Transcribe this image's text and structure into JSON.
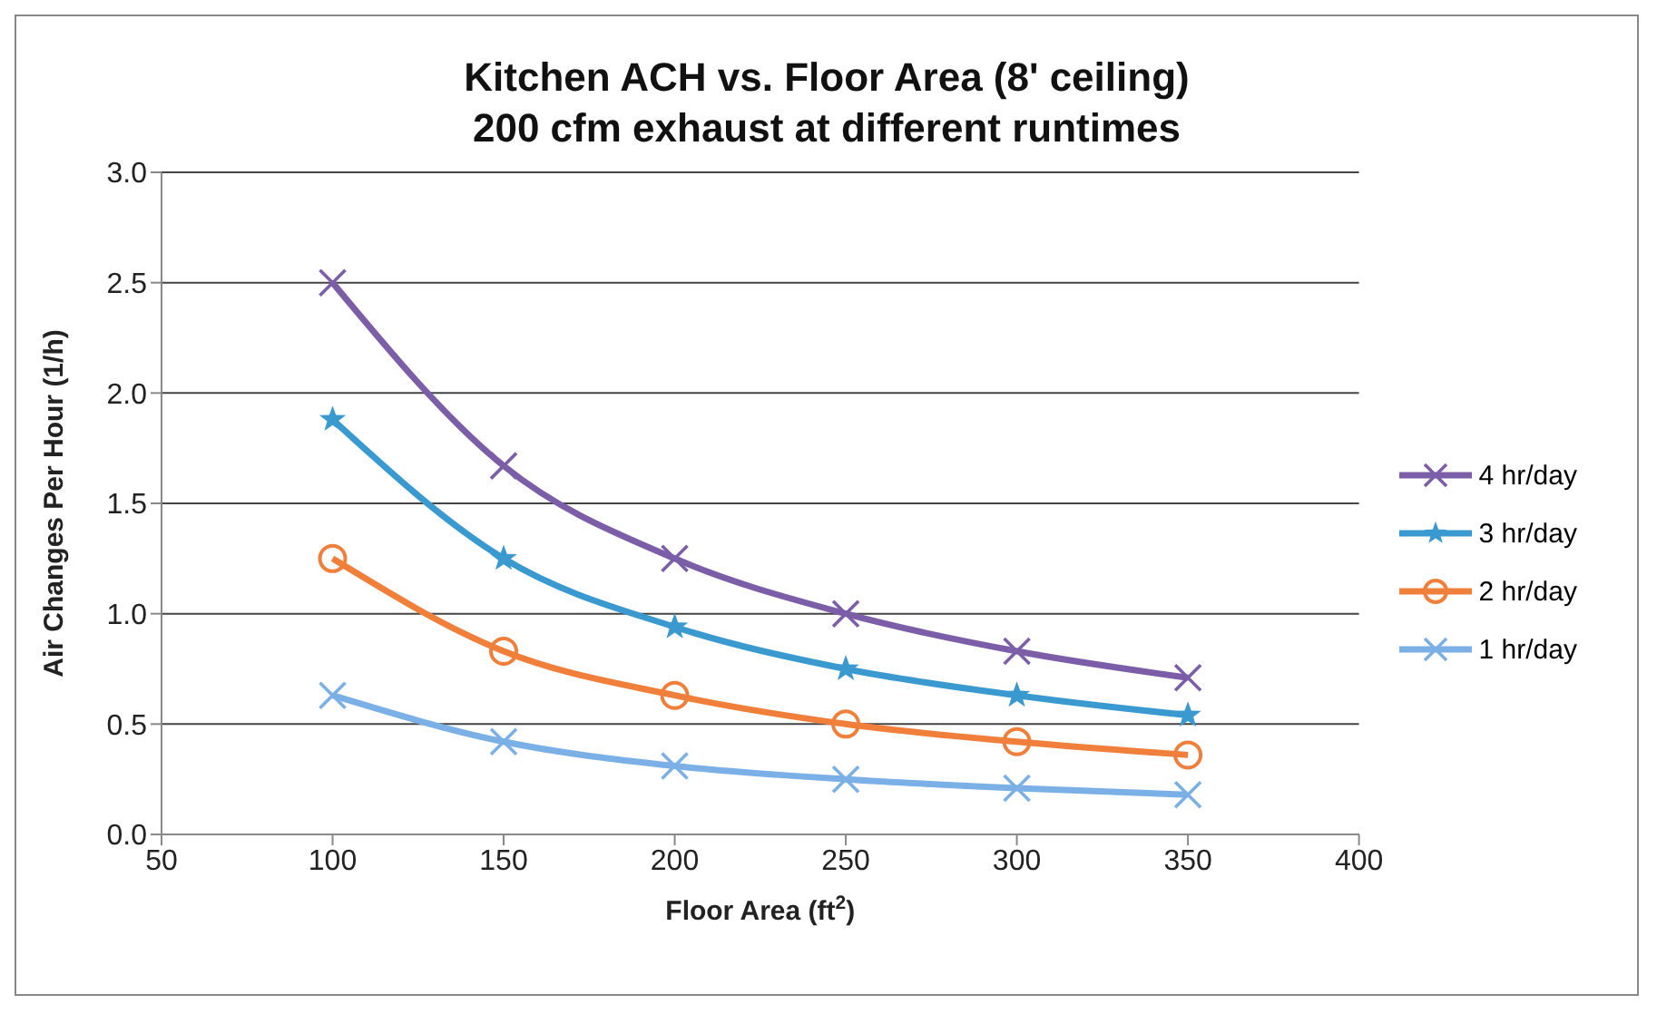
{
  "chart_data": {
    "type": "line",
    "title": "Kitchen ACH vs. Floor Area (8' ceiling)",
    "subtitle": "200 cfm exhaust at different runtimes",
    "xlabel": "Floor Area (ft$^{2}$)",
    "ylabel": "Air Changes Per Hour (1/h)",
    "x": [
      100,
      150,
      200,
      250,
      300,
      350
    ],
    "series": [
      {
        "name": "4 hr/day",
        "color": "#7b5ea7",
        "marker": "cross",
        "values": [
          2.5,
          1.67,
          1.25,
          1.0,
          0.83,
          0.71
        ]
      },
      {
        "name": "3 hr/day",
        "color": "#3a9ad0",
        "marker": "star",
        "values": [
          1.88,
          1.25,
          0.94,
          0.75,
          0.63,
          0.54
        ]
      },
      {
        "name": "2 hr/day",
        "color": "#f07f3c",
        "marker": "circle",
        "values": [
          1.25,
          0.83,
          0.63,
          0.5,
          0.42,
          0.36
        ]
      },
      {
        "name": "1 hr/day",
        "color": "#7ab0e6",
        "marker": "cross",
        "values": [
          0.63,
          0.42,
          0.31,
          0.25,
          0.21,
          0.18
        ]
      }
    ],
    "xlim": [
      50,
      400
    ],
    "xticks": [
      50,
      100,
      150,
      200,
      250,
      300,
      350,
      400
    ],
    "ylim": [
      0,
      3
    ],
    "yticks": [
      {
        "value": 0,
        "label": "0.0"
      },
      {
        "value": 0.5,
        "label": "0.5"
      },
      {
        "value": 1,
        "label": "1.0"
      },
      {
        "value": 1.5,
        "label": "1.5"
      },
      {
        "value": 2,
        "label": "2.0"
      },
      {
        "value": 2.5,
        "label": "2.5"
      },
      {
        "value": 3,
        "label": "3.0"
      }
    ],
    "grid": "y",
    "legend": "right"
  }
}
